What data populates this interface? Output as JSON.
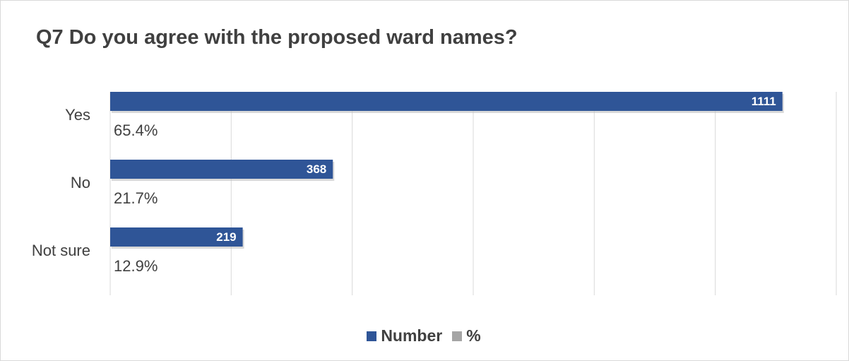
{
  "chart_data": {
    "type": "bar",
    "orientation": "horizontal",
    "title": "Q7 Do you agree with the proposed ward names?",
    "categories": [
      "Yes",
      "No",
      "Not sure"
    ],
    "series": [
      {
        "name": "Number",
        "values": [
          1111,
          368,
          219
        ],
        "color": "#2f5597"
      },
      {
        "name": "%",
        "values": [
          "65.4%",
          "21.7%",
          "12.9%"
        ],
        "color": "#a5a5a5"
      }
    ],
    "xlim": [
      0,
      1200
    ],
    "grid": true,
    "legend_position": "bottom"
  }
}
